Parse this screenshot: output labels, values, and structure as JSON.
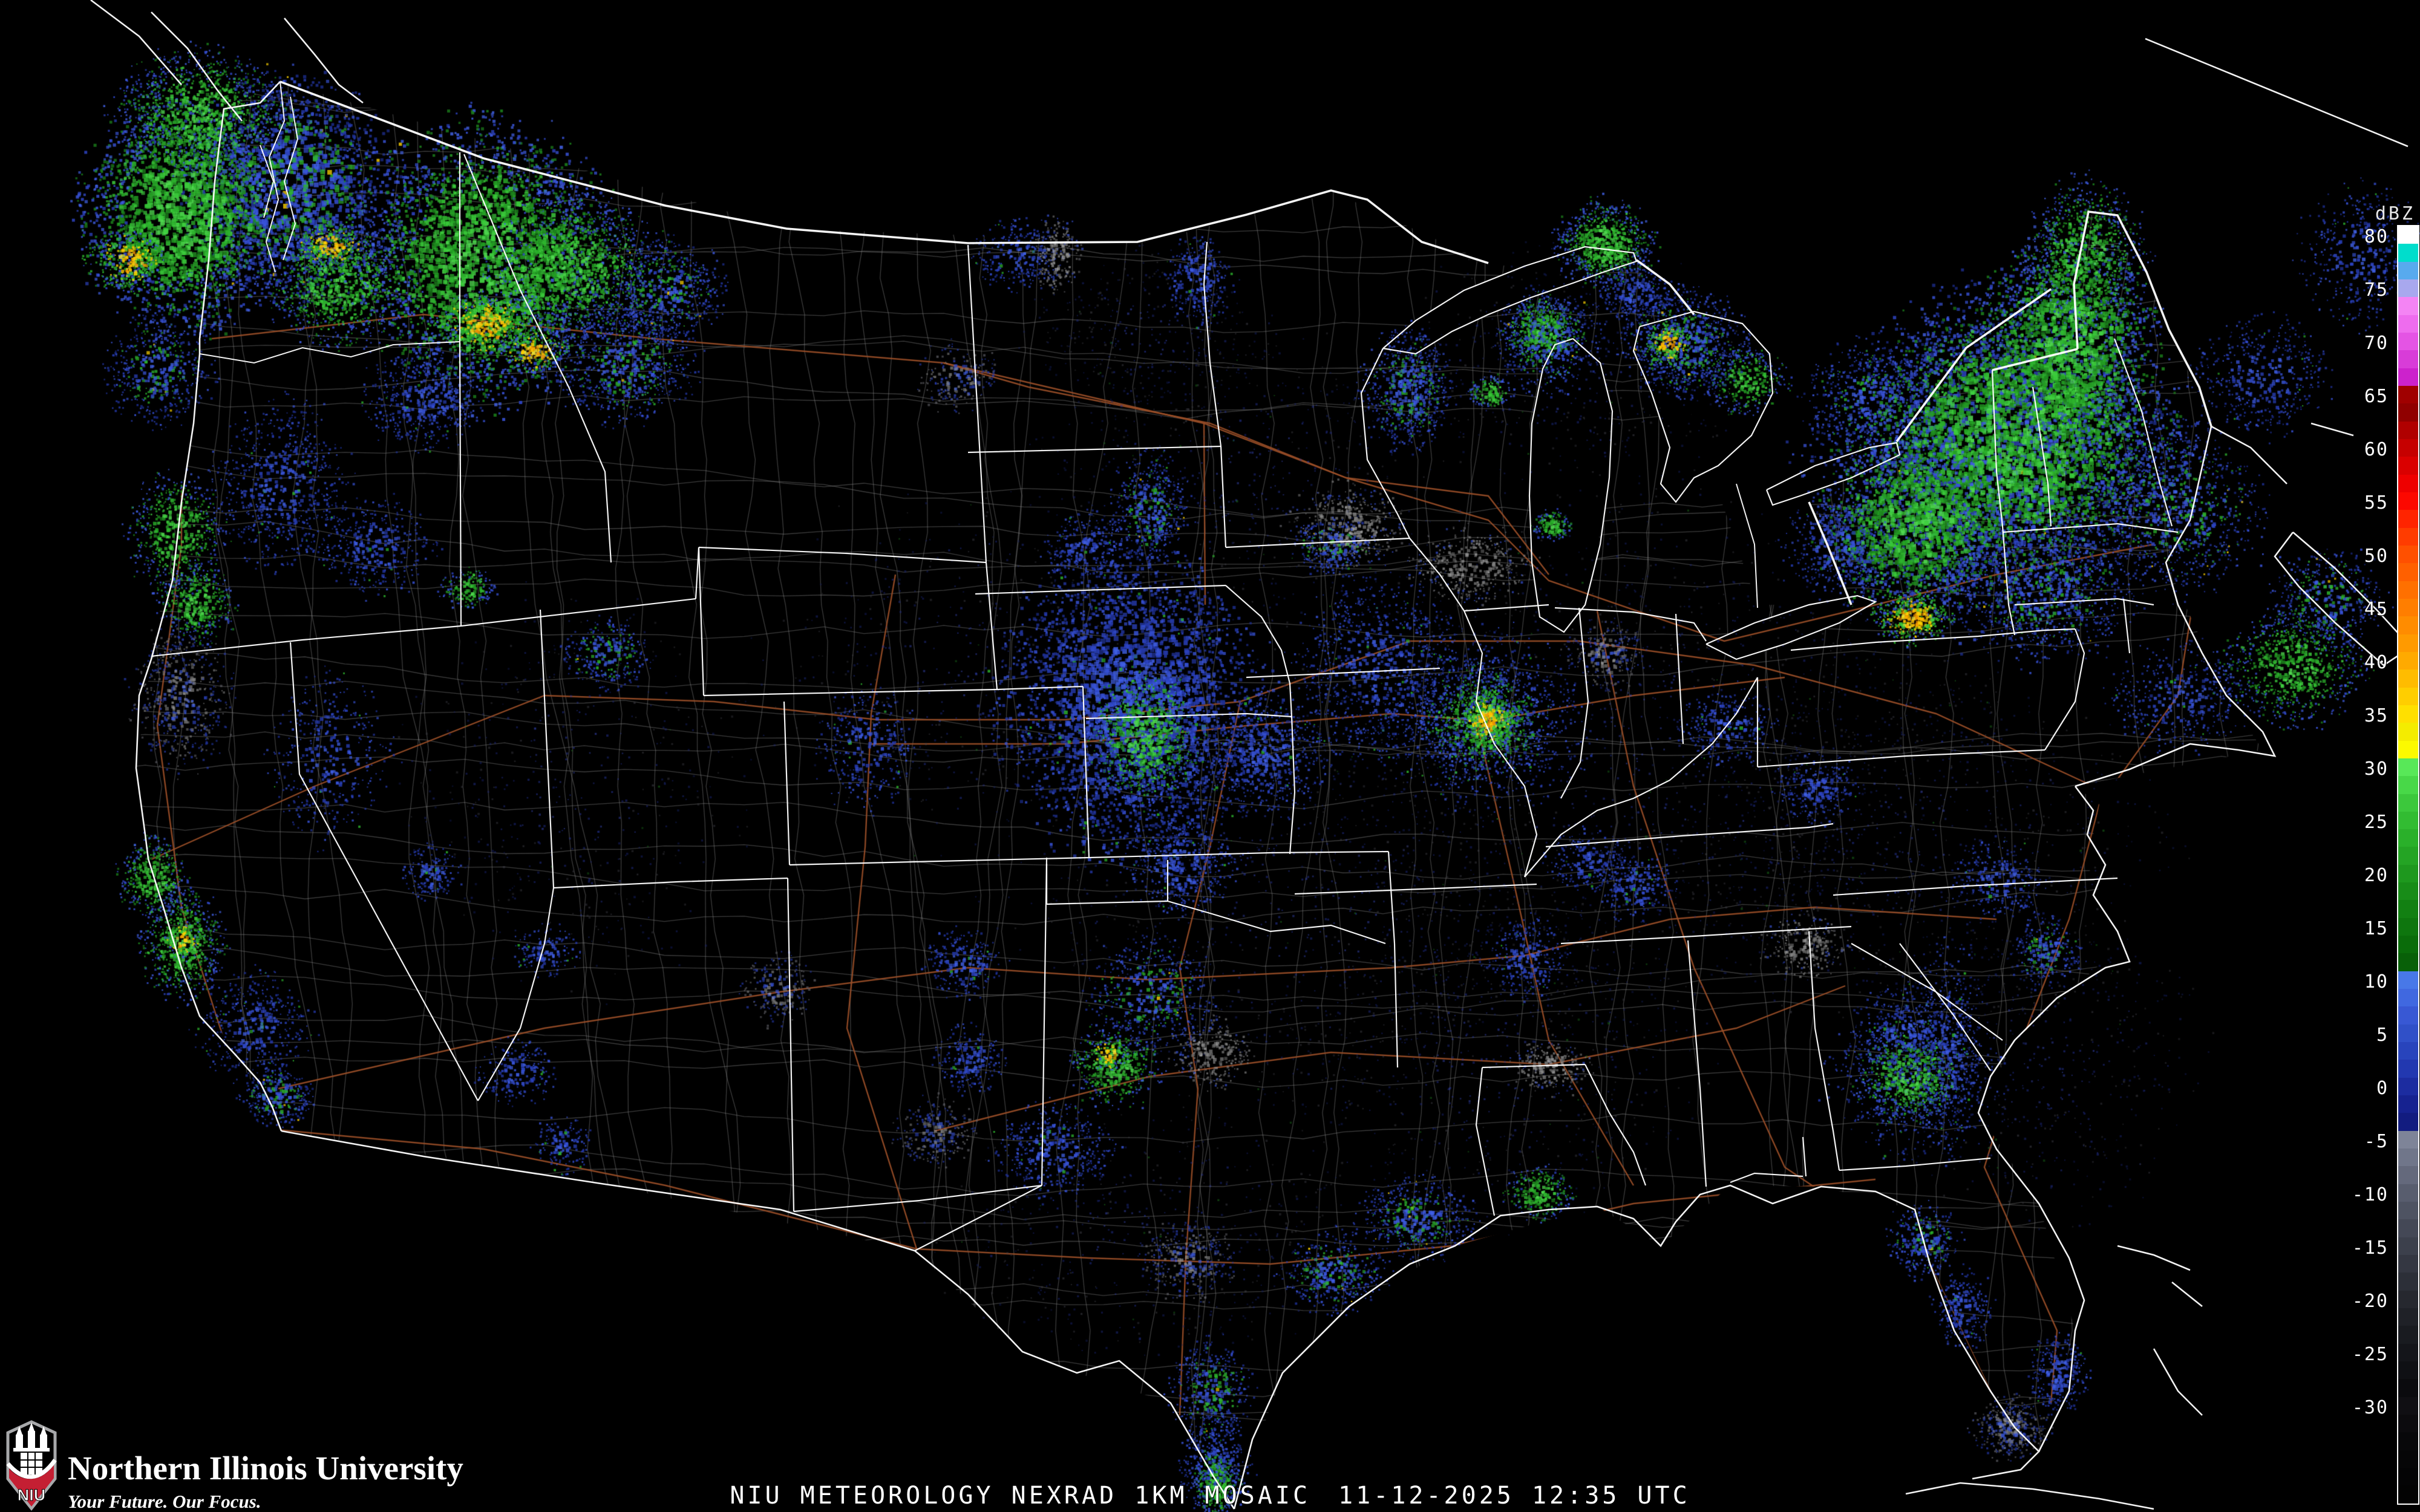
{
  "footer": {
    "product_line": "NIU METEOROLOGY NEXRAD 1KM MOSAIC",
    "timestamp": "11-12-2025 12:35 UTC"
  },
  "branding": {
    "logo_acronym": "NIU",
    "university_name": "Northern Illinois University",
    "tagline": "Your Future. Our Focus.",
    "logo_red": "#c41f33",
    "logo_silver": "#a7a8aa"
  },
  "colorbar": {
    "unit_label": "dBZ",
    "tick_labels": [
      "80",
      "75",
      "70",
      "65",
      "60",
      "55",
      "50",
      "45",
      "40",
      "35",
      "30",
      "25",
      "20",
      "15",
      "10",
      "5",
      "0",
      "-5",
      "-10",
      "-15",
      "-20",
      "-25",
      "-30"
    ],
    "segment_colors": [
      "#ffffff",
      "#00ddcc",
      "#58aaee",
      "#a8a8ee",
      "#f484f4",
      "#ee6cee",
      "#e454e4",
      "#d83cd8",
      "#cc22cc",
      "#a00000",
      "#900000",
      "#b00000",
      "#c60000",
      "#da0000",
      "#ee0000",
      "#fc0800",
      "#ff2400",
      "#ff3c00",
      "#ff5000",
      "#ff6000",
      "#ff7000",
      "#ff7e00",
      "#ff8c00",
      "#ff9a00",
      "#ffaa00",
      "#ffbc00",
      "#ffce00",
      "#ffe000",
      "#f4ec00",
      "#fcfa00",
      "#58e858",
      "#48d848",
      "#3cc83c",
      "#32bc32",
      "#2ab02a",
      "#24a424",
      "#1e981e",
      "#188c18",
      "#128012",
      "#0e760e",
      "#0a6c0a",
      "#086008",
      "#4878e8",
      "#4068e0",
      "#3858d4",
      "#3050c8",
      "#2844bc",
      "#2238b0",
      "#1c2ca0",
      "#162290",
      "#121c80",
      "#7e8498",
      "#70768a",
      "#64697c",
      "#585d6e",
      "#4e5362",
      "#444856",
      "#3c404c",
      "#343742",
      "#2c2f38",
      "#26282f",
      "#1f2127",
      "#191b20",
      "#14151a",
      "#0f1014",
      "#0b0b0e",
      "#100f13",
      "#0c0b0e",
      "#08080a",
      "#060607",
      "#040405",
      "#030303"
    ]
  },
  "map_style": {
    "background": "#000000",
    "state_border_color": "#ffffff",
    "county_border_color": "#8f8f8f",
    "highway_color": "#9b4f28",
    "coast_color": "#ffffff"
  },
  "radar": {
    "cells": [
      [
        "f",
        2700,
        1250,
        520,
        380,
        1500
      ],
      [
        "f",
        3150,
        1400,
        380,
        280,
        900
      ],
      [
        "f",
        2150,
        1480,
        420,
        320,
        900
      ],
      [
        "f",
        2450,
        1750,
        320,
        260,
        700
      ],
      [
        "f",
        1600,
        1100,
        300,
        260,
        500
      ],
      [
        "f",
        950,
        1300,
        260,
        300,
        500
      ],
      [
        "f",
        2050,
        800,
        300,
        220,
        600
      ],
      [
        "f",
        2600,
        600,
        260,
        200,
        500
      ],
      [
        "f",
        3350,
        1750,
        260,
        240,
        600
      ],
      [
        "f",
        1900,
        2050,
        300,
        200,
        500
      ],
      [
        "f",
        1900,
        550,
        180,
        120,
        350
      ],
      [
        "bg",
        480,
        310,
        160,
        170,
        1800
      ],
      [
        "g",
        300,
        350,
        150,
        180,
        2400
      ],
      [
        "g",
        330,
        185,
        125,
        95,
        1300
      ],
      [
        "y",
        210,
        430,
        60,
        50,
        350
      ],
      [
        "g",
        560,
        470,
        120,
        90,
        1000
      ],
      [
        "y",
        545,
        405,
        55,
        35,
        300
      ],
      [
        "g",
        800,
        430,
        200,
        210,
        3000
      ],
      [
        "g",
        950,
        440,
        130,
        110,
        1300
      ],
      [
        "y",
        800,
        535,
        75,
        50,
        600
      ],
      [
        "y",
        880,
        580,
        55,
        35,
        300
      ],
      [
        "bg",
        1030,
        600,
        110,
        90,
        800
      ],
      [
        "b",
        700,
        660,
        95,
        75,
        500
      ],
      [
        "bg",
        260,
        610,
        85,
        85,
        500
      ],
      [
        "g",
        290,
        880,
        75,
        95,
        650
      ],
      [
        "b",
        465,
        800,
        105,
        125,
        700
      ],
      [
        "g",
        325,
        995,
        65,
        60,
        420
      ],
      [
        "b",
        620,
        905,
        85,
        75,
        350
      ],
      [
        "bg",
        1100,
        480,
        90,
        80,
        600
      ],
      [
        "bgr",
        300,
        1150,
        75,
        115,
        550
      ],
      [
        "g",
        252,
        1450,
        52,
        62,
        430
      ],
      [
        "g",
        300,
        1560,
        65,
        85,
        700
      ],
      [
        "y",
        300,
        1555,
        28,
        32,
        140
      ],
      [
        "b",
        420,
        1700,
        85,
        85,
        420
      ],
      [
        "bg",
        458,
        1812,
        55,
        45,
        300
      ],
      [
        "b",
        545,
        1255,
        95,
        125,
        380
      ],
      [
        "b",
        714,
        1442,
        45,
        45,
        160
      ],
      [
        "bg",
        1000,
        1080,
        65,
        55,
        300
      ],
      [
        "g",
        772,
        972,
        42,
        32,
        170
      ],
      [
        "b",
        1432,
        1232,
        75,
        95,
        340
      ],
      [
        "bgr",
        1282,
        1632,
        55,
        55,
        200
      ],
      [
        "b",
        852,
        1772,
        62,
        52,
        200
      ],
      [
        "b",
        930,
        1890,
        45,
        45,
        150
      ],
      [
        "b",
        902,
        1572,
        52,
        42,
        150
      ],
      [
        "b",
        1682,
        422,
        72,
        52,
        280
      ],
      [
        "gr",
        1745,
        420,
        35,
        60,
        200
      ],
      [
        "bgr",
        1582,
        622,
        62,
        52,
        210
      ],
      [
        "b",
        1792,
        902,
        62,
        52,
        240
      ],
      [
        "gr",
        2225,
        872,
        85,
        65,
        420
      ],
      [
        "b",
        1980,
        460,
        55,
        70,
        300
      ],
      [
        "g",
        2462,
        648,
        32,
        27,
        150
      ],
      [
        "bg",
        1900,
        840,
        60,
        90,
        450
      ],
      [
        "bg",
        2325,
        640,
        70,
        95,
        700
      ],
      [
        "b",
        1870,
        1160,
        200,
        240,
        2800
      ],
      [
        "g",
        1890,
        1215,
        90,
        110,
        1100
      ],
      [
        "b",
        2280,
        1100,
        130,
        140,
        900
      ],
      [
        "b",
        2090,
        1245,
        105,
        95,
        700
      ],
      [
        "b",
        1950,
        1432,
        85,
        75,
        450
      ],
      [
        "bg",
        1900,
        1642,
        95,
        85,
        520
      ],
      [
        "b",
        1592,
        1592,
        62,
        52,
        240
      ],
      [
        "b",
        1602,
        1752,
        55,
        52,
        220
      ],
      [
        "bgr",
        1545,
        1872,
        62,
        52,
        240
      ],
      [
        "gr",
        2430,
        935,
        95,
        60,
        380
      ],
      [
        "bg",
        2202,
        902,
        65,
        45,
        260
      ],
      [
        "b",
        2455,
        1192,
        155,
        135,
        900
      ],
      [
        "g",
        2455,
        1190,
        95,
        85,
        900
      ],
      [
        "y",
        2458,
        1188,
        45,
        40,
        350
      ],
      [
        "bgr",
        2652,
        1082,
        62,
        52,
        240
      ],
      [
        "b",
        2522,
        1582,
        62,
        62,
        280
      ],
      [
        "b",
        2702,
        1462,
        62,
        52,
        240
      ],
      [
        "gr",
        2982,
        1562,
        62,
        52,
        240
      ],
      [
        "b",
        2852,
        1202,
        72,
        62,
        280
      ],
      [
        "b",
        3002,
        1302,
        62,
        52,
        230
      ],
      [
        "g",
        1842,
        1762,
        72,
        62,
        430
      ],
      [
        "y",
        1832,
        1742,
        30,
        25,
        120
      ],
      [
        "b",
        1742,
        1902,
        92,
        72,
        450
      ],
      [
        "bgr",
        1962,
        2082,
        72,
        62,
        320
      ],
      [
        "gr",
        2002,
        1742,
        62,
        52,
        280
      ],
      [
        "bg",
        2202,
        2102,
        82,
        62,
        420
      ],
      [
        "bg",
        2342,
        2012,
        92,
        62,
        480
      ],
      [
        "bg",
        2002,
        2302,
        62,
        82,
        420
      ],
      [
        "g",
        2008,
        2452,
        35,
        60,
        450
      ],
      [
        "b",
        2008,
        2420,
        55,
        80,
        300
      ],
      [
        "g",
        2542,
        1972,
        52,
        42,
        280
      ],
      [
        "gr",
        2562,
        1762,
        62,
        42,
        230
      ],
      [
        "b",
        2622,
        1422,
        62,
        52,
        200
      ],
      [
        "b",
        3160,
        1780,
        130,
        120,
        550
      ],
      [
        "g",
        3155,
        1775,
        85,
        80,
        700
      ],
      [
        "b",
        3220,
        1730,
        50,
        170,
        400
      ],
      [
        "bg",
        3178,
        2050,
        55,
        55,
        320
      ],
      [
        "b",
        3242,
        2162,
        45,
        65,
        240
      ],
      [
        "b",
        3400,
        2270,
        45,
        65,
        280
      ],
      [
        "bgr",
        3320,
        2360,
        58,
        48,
        380
      ],
      [
        "bg",
        3382,
        1572,
        55,
        55,
        240
      ],
      [
        "b",
        3302,
        1452,
        72,
        62,
        260
      ],
      [
        "b",
        3152,
        1702,
        82,
        72,
        280
      ],
      [
        "bg",
        3290,
        760,
        270,
        250,
        2600
      ],
      [
        "g",
        3330,
        720,
        240,
        220,
        3600
      ],
      [
        "g",
        3160,
        870,
        140,
        130,
        1500
      ],
      [
        "g",
        3420,
        560,
        130,
        170,
        1600
      ],
      [
        "g",
        3445,
        420,
        90,
        110,
        900
      ],
      [
        "y",
        3160,
        1020,
        60,
        40,
        450
      ],
      [
        "bg",
        3380,
        980,
        140,
        110,
        900
      ],
      [
        "bg",
        3600,
        840,
        130,
        130,
        950
      ],
      [
        "g",
        3790,
        1100,
        110,
        90,
        850
      ],
      [
        "bg",
        3845,
        990,
        90,
        80,
        450
      ],
      [
        "bg",
        3090,
        660,
        100,
        90,
        550
      ],
      [
        "b",
        3040,
        905,
        90,
        80,
        420
      ],
      [
        "b",
        3600,
        1150,
        110,
        80,
        420
      ],
      [
        "g",
        2885,
        628,
        60,
        50,
        350
      ],
      [
        "b",
        3900,
        420,
        90,
        110,
        400
      ],
      [
        "b",
        3740,
        620,
        100,
        90,
        450
      ],
      [
        "g",
        2652,
        402,
        75,
        65,
        850
      ],
      [
        "g",
        2545,
        545,
        55,
        55,
        500
      ],
      [
        "bg",
        2560,
        560,
        80,
        80,
        500
      ],
      [
        "bg",
        2782,
        565,
        95,
        85,
        900
      ],
      [
        "y",
        2755,
        565,
        33,
        33,
        240
      ],
      [
        "b",
        2702,
        482,
        62,
        42,
        260
      ],
      [
        "g",
        2565,
        868,
        30,
        25,
        150
      ]
    ]
  }
}
